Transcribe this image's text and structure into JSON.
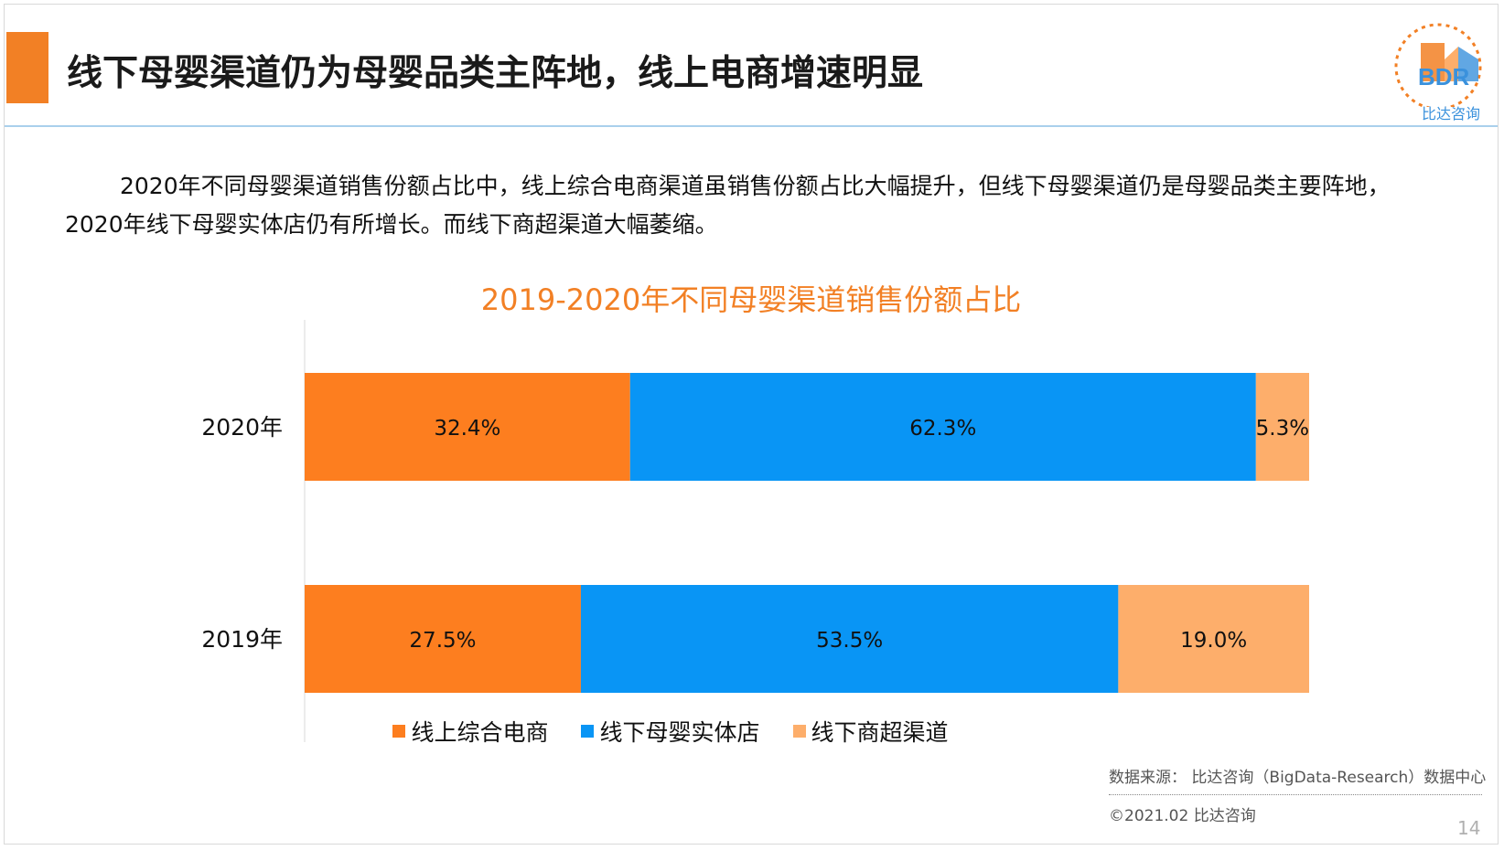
{
  "slide": {
    "title": "线下母婴渠道仍为母婴品类主阵地，线上电商增速明显",
    "logo_brand": "BDR",
    "logo_text": "比达咨询",
    "intro": "2020年不同母婴渠道销售份额占比中，线上综合电商渠道虽销售份额占比大幅提升，但线下母婴渠道仍是母婴品类主要阵地，2020年线下母婴实体店仍有所增长。而线下商超渠道大幅萎缩。",
    "source": "数据来源： 比达咨询（BigData-Research）数据中心",
    "copyright": "©2021.02  比达咨询",
    "page_number": "14"
  },
  "colors": {
    "accent": "#f28025",
    "online_ecommerce": "#fd7e1f",
    "offline_store": "#0995f5",
    "offline_supermarket": "#fdae6b",
    "logo_blue": "#3a91dc"
  },
  "chart_data": {
    "type": "bar",
    "orientation": "horizontal",
    "stacked": true,
    "title": "2019-2020年不同母婴渠道销售份额占比",
    "categories": [
      "2020年",
      "2019年"
    ],
    "series": [
      {
        "name": "线上综合电商",
        "values": [
          32.4,
          27.5
        ],
        "labels": [
          "32.4%",
          "27.5%"
        ],
        "color": "#fd7e1f"
      },
      {
        "name": "线下母婴实体店",
        "values": [
          62.3,
          53.5
        ],
        "labels": [
          "62.3%",
          "53.5%"
        ],
        "color": "#0995f5"
      },
      {
        "name": "线下商超渠道",
        "values": [
          5.3,
          19.0
        ],
        "labels": [
          "5.3%",
          "19.0%"
        ],
        "color": "#fdae6b"
      }
    ],
    "xlim": [
      0,
      100
    ],
    "grid": false,
    "legend_position": "bottom"
  }
}
